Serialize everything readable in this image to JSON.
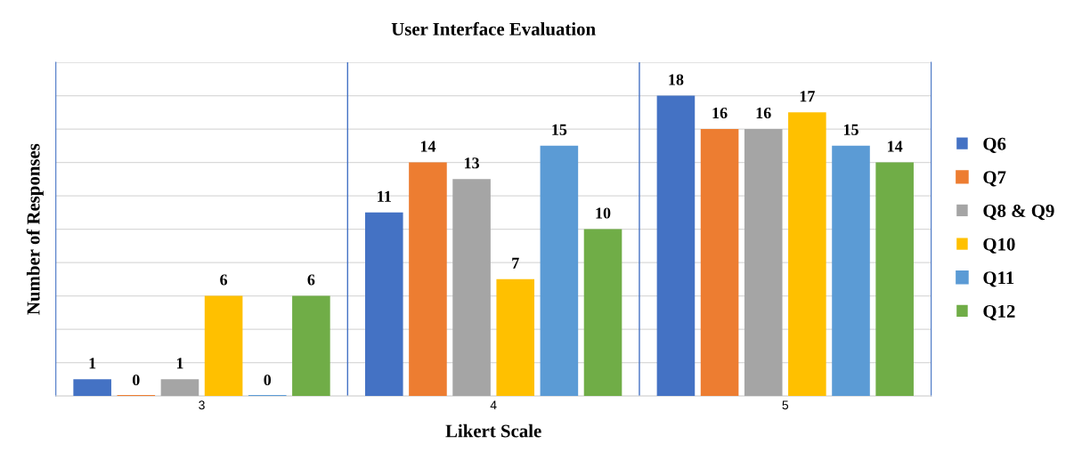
{
  "chart_data": {
    "type": "bar",
    "title": "User Interface Evaluation",
    "xlabel": "Likert Scale",
    "ylabel": "Number of Responses",
    "categories": [
      "3",
      "4",
      "5"
    ],
    "series": [
      {
        "name": "Q6",
        "color": "#4472c4",
        "values": [
          1,
          11,
          18
        ]
      },
      {
        "name": "Q7",
        "color": "#ed7d31",
        "values": [
          0,
          14,
          16
        ]
      },
      {
        "name": "Q8 & Q9",
        "color": "#a5a5a5",
        "values": [
          1,
          13,
          16
        ]
      },
      {
        "name": "Q10",
        "color": "#ffc000",
        "values": [
          6,
          7,
          17
        ]
      },
      {
        "name": "Q11",
        "color": "#5b9bd5",
        "values": [
          0,
          15,
          15
        ]
      },
      {
        "name": "Q12",
        "color": "#70ad47",
        "values": [
          6,
          10,
          14
        ]
      }
    ],
    "ylim": [
      0,
      20
    ],
    "yticks": [
      {
        "value": 0,
        "label": null
      },
      {
        "value": 2,
        "label": null
      },
      {
        "value": 4,
        "label": null
      },
      {
        "value": 6,
        "label": null
      },
      {
        "value": 8,
        "label": null
      },
      {
        "value": 10,
        "label": null
      },
      {
        "value": 12,
        "label": null
      },
      {
        "value": 14,
        "label": null
      },
      {
        "value": 16,
        "label": null
      },
      {
        "value": 18,
        "label": null
      },
      {
        "value": 20,
        "label": null
      }
    ],
    "tick_labels": "x",
    "grid": true,
    "legend": "right",
    "data_labels": true
  }
}
